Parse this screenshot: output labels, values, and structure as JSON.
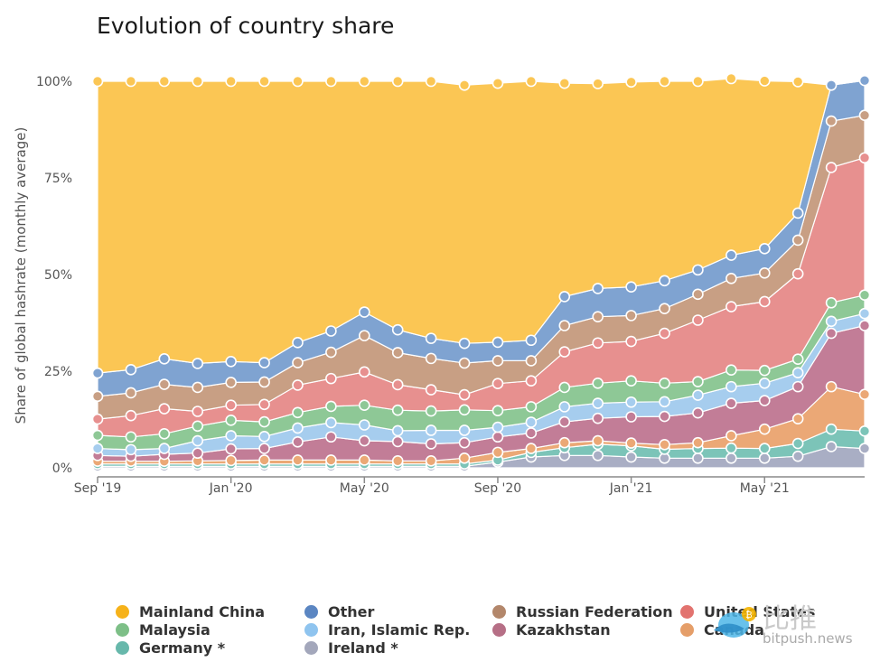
{
  "chart_data": {
    "type": "area",
    "stacked": true,
    "title": "Evolution of country share",
    "xlabel": "",
    "ylabel": "Share of global hashrate (monthly average)",
    "ylim": [
      0,
      100
    ],
    "y_ticks": [
      "0%",
      "25%",
      "50%",
      "75%",
      "100%"
    ],
    "x_ticks": [
      {
        "label": "Sep '19",
        "index": 0
      },
      {
        "label": "Jan '20",
        "index": 4
      },
      {
        "label": "May '20",
        "index": 8
      },
      {
        "label": "Sep '20",
        "index": 12
      },
      {
        "label": "Jan '21",
        "index": 16
      },
      {
        "label": "May '21",
        "index": 20
      }
    ],
    "months": [
      "2019-09",
      "2019-10",
      "2019-11",
      "2019-12",
      "2020-01",
      "2020-02",
      "2020-03",
      "2020-04",
      "2020-05",
      "2020-06",
      "2020-07",
      "2020-08",
      "2020-09",
      "2020-10",
      "2020-11",
      "2020-12",
      "2021-01",
      "2021-02",
      "2021-03",
      "2021-04",
      "2021-05",
      "2021-06",
      "2021-07",
      "2021-08"
    ],
    "series": [
      {
        "name": "Ireland *",
        "color": "#a9aec4",
        "values": [
          0.4,
          0.4,
          0.4,
          0.4,
          0.4,
          0.4,
          0.4,
          0.4,
          0.4,
          0.4,
          0.4,
          0.4,
          1.5,
          2.8,
          3.2,
          3.2,
          2.8,
          2.5,
          2.5,
          2.5,
          2.5,
          3.0,
          5.5,
          5.0
        ]
      },
      {
        "name": "Germany *",
        "color": "#7cc4b8",
        "values": [
          0.6,
          0.6,
          0.6,
          0.6,
          0.6,
          0.6,
          0.6,
          0.6,
          0.6,
          0.6,
          0.6,
          0.6,
          0.5,
          1.2,
          2.0,
          2.9,
          2.9,
          2.3,
          2.5,
          2.6,
          2.5,
          3.3,
          4.5,
          4.5
        ]
      },
      {
        "name": "Canada",
        "color": "#eba876",
        "values": [
          0.7,
          0.7,
          0.7,
          0.8,
          0.9,
          1.0,
          1.0,
          1.0,
          1.0,
          0.8,
          0.8,
          1.5,
          2.0,
          1.0,
          1.3,
          0.9,
          0.7,
          1.2,
          1.5,
          3.2,
          5.0,
          6.4,
          11.0,
          9.5
        ]
      },
      {
        "name": "Kazakhstan",
        "color": "#c27d97",
        "values": [
          1.5,
          1.3,
          1.8,
          2.0,
          3.0,
          3.0,
          4.7,
          6.0,
          5.0,
          5.0,
          4.4,
          4.0,
          4.0,
          4.0,
          5.4,
          5.8,
          6.8,
          7.3,
          7.7,
          8.4,
          7.4,
          8.3,
          13.8,
          17.8
        ]
      },
      {
        "name": "Iran, Islamic Rep.",
        "color": "#a6cdee",
        "values": [
          1.8,
          1.7,
          1.5,
          3.2,
          3.4,
          3.1,
          3.6,
          3.7,
          4.1,
          2.8,
          3.5,
          3.2,
          2.5,
          2.8,
          3.9,
          3.9,
          3.8,
          3.8,
          4.6,
          4.3,
          4.5,
          3.6,
          3.1,
          3.1
        ]
      },
      {
        "name": "Malaysia",
        "color": "#8ec896",
        "values": [
          3.4,
          3.3,
          3.8,
          3.8,
          4.0,
          3.8,
          4.0,
          4.2,
          5.1,
          5.3,
          5.0,
          5.3,
          4.3,
          4.0,
          5.0,
          5.2,
          5.5,
          4.8,
          3.5,
          4.3,
          3.3,
          3.5,
          4.8,
          4.8
        ]
      },
      {
        "name": "United States",
        "color": "#e7908f",
        "values": [
          4.2,
          5.5,
          6.5,
          3.8,
          3.9,
          4.5,
          7.1,
          7.2,
          8.6,
          6.6,
          5.5,
          3.9,
          7.0,
          6.7,
          9.2,
          10.4,
          10.2,
          12.9,
          15.9,
          16.4,
          17.8,
          22.1,
          35.0,
          35.5
        ]
      },
      {
        "name": "Russian Federation",
        "color": "#c89f84",
        "values": [
          5.9,
          5.9,
          6.3,
          6.2,
          5.9,
          5.8,
          5.8,
          6.8,
          9.4,
          8.3,
          8.1,
          8.2,
          5.9,
          5.2,
          6.8,
          6.8,
          6.7,
          6.4,
          6.7,
          7.3,
          7.4,
          8.7,
          12.0,
          11.0
        ]
      },
      {
        "name": "Other",
        "color": "#7fa3d1",
        "values": [
          6.0,
          6.0,
          6.6,
          6.2,
          5.4,
          5.0,
          5.2,
          5.5,
          6.1,
          5.9,
          5.2,
          5.1,
          4.8,
          5.3,
          7.5,
          7.3,
          7.4,
          7.2,
          6.3,
          6.0,
          6.3,
          7.0,
          9.3,
          9.0
        ]
      },
      {
        "name": "Mainland China",
        "color": "#fbc654",
        "values": [
          75.5,
          74.6,
          71.8,
          73.0,
          72.5,
          72.8,
          67.6,
          64.6,
          59.7,
          64.3,
          66.5,
          66.8,
          67.0,
          67.0,
          55.2,
          53.0,
          53.0,
          51.6,
          48.8,
          45.7,
          43.4,
          34.0,
          0.0,
          0.0
        ]
      }
    ],
    "legend": [
      {
        "name": "Mainland China",
        "color": "#f6b21a"
      },
      {
        "name": "Other",
        "color": "#5b86c2"
      },
      {
        "name": "Russian Federation",
        "color": "#b3876b"
      },
      {
        "name": "United States",
        "color": "#e2736f"
      },
      {
        "name": "Malaysia",
        "color": "#7dbf87"
      },
      {
        "name": "Iran, Islamic Rep.",
        "color": "#8fc4ef"
      },
      {
        "name": "Kazakhstan",
        "color": "#b66f86"
      },
      {
        "name": "Canada",
        "color": "#e59e69"
      },
      {
        "name": "Germany *",
        "color": "#67b8ab"
      },
      {
        "name": "Ireland *",
        "color": "#a3a7bb"
      }
    ],
    "legend_position": "bottom",
    "grid": false
  },
  "watermark": {
    "logo_text": "比推",
    "site": "bitpush.news"
  }
}
